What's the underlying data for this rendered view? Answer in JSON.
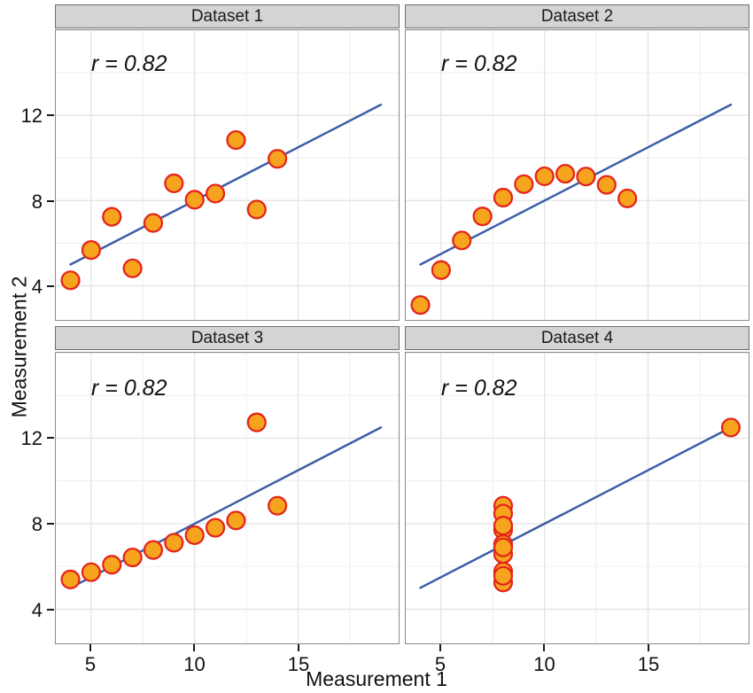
{
  "figure": {
    "kind": "faceted-scatter",
    "facet_count": 4
  },
  "chart_data": {
    "type": "scatter",
    "title": "",
    "xlabel": "Measurement 1",
    "ylabel": "Measurement 2",
    "x_domain": [
      3.3,
      19.85
    ],
    "y_domain": [
      2.4,
      16.0
    ],
    "x_ticks": [
      5,
      10,
      15
    ],
    "y_ticks": [
      4,
      8,
      12
    ],
    "x_major_grid": [
      5,
      10,
      15
    ],
    "x_minor_grid": [
      7.5,
      12.5,
      17.5
    ],
    "y_major_grid": [
      4,
      8,
      12,
      16
    ],
    "y_minor_grid": [
      6,
      10,
      14
    ],
    "grid": true,
    "legend": "none",
    "regression_line": {
      "x1": 4,
      "y1": 5,
      "x2": 19,
      "y2": 12.5
    },
    "panels": [
      {
        "title": "Dataset 1",
        "annotation": "r = 0.82",
        "points": [
          [
            10,
            8.04
          ],
          [
            8,
            6.95
          ],
          [
            13,
            7.58
          ],
          [
            9,
            8.81
          ],
          [
            11,
            8.33
          ],
          [
            14,
            9.96
          ],
          [
            6,
            7.24
          ],
          [
            4,
            4.26
          ],
          [
            12,
            10.84
          ],
          [
            7,
            4.82
          ],
          [
            5,
            5.68
          ]
        ]
      },
      {
        "title": "Dataset 2",
        "annotation": "r = 0.82",
        "points": [
          [
            10,
            9.14
          ],
          [
            8,
            8.14
          ],
          [
            13,
            8.74
          ],
          [
            9,
            8.77
          ],
          [
            11,
            9.26
          ],
          [
            14,
            8.1
          ],
          [
            6,
            6.13
          ],
          [
            4,
            3.1
          ],
          [
            12,
            9.13
          ],
          [
            7,
            7.26
          ],
          [
            5,
            4.74
          ]
        ]
      },
      {
        "title": "Dataset 3",
        "annotation": "r = 0.82",
        "points": [
          [
            10,
            7.46
          ],
          [
            8,
            6.77
          ],
          [
            13,
            12.74
          ],
          [
            9,
            7.11
          ],
          [
            11,
            7.81
          ],
          [
            14,
            8.84
          ],
          [
            6,
            6.08
          ],
          [
            4,
            5.39
          ],
          [
            12,
            8.15
          ],
          [
            7,
            6.42
          ],
          [
            5,
            5.73
          ]
        ]
      },
      {
        "title": "Dataset 4",
        "annotation": "r = 0.82",
        "points": [
          [
            8,
            6.58
          ],
          [
            8,
            5.76
          ],
          [
            8,
            7.71
          ],
          [
            8,
            8.84
          ],
          [
            8,
            8.47
          ],
          [
            8,
            7.04
          ],
          [
            8,
            5.25
          ],
          [
            19,
            12.5
          ],
          [
            8,
            5.56
          ],
          [
            8,
            7.91
          ],
          [
            8,
            6.89
          ]
        ]
      }
    ],
    "colors": {
      "point_fill": "#F6A41E",
      "point_stroke": "#E4251C",
      "line": "#3C5DA8",
      "grid_major": "#E5E5E5",
      "grid_minor": "#F0F0F0",
      "panel_border": "#8A8A8A",
      "strip_bg": "#D4D4D4",
      "strip_border": "#6E6E6E",
      "text": "#1A1A1A"
    }
  }
}
